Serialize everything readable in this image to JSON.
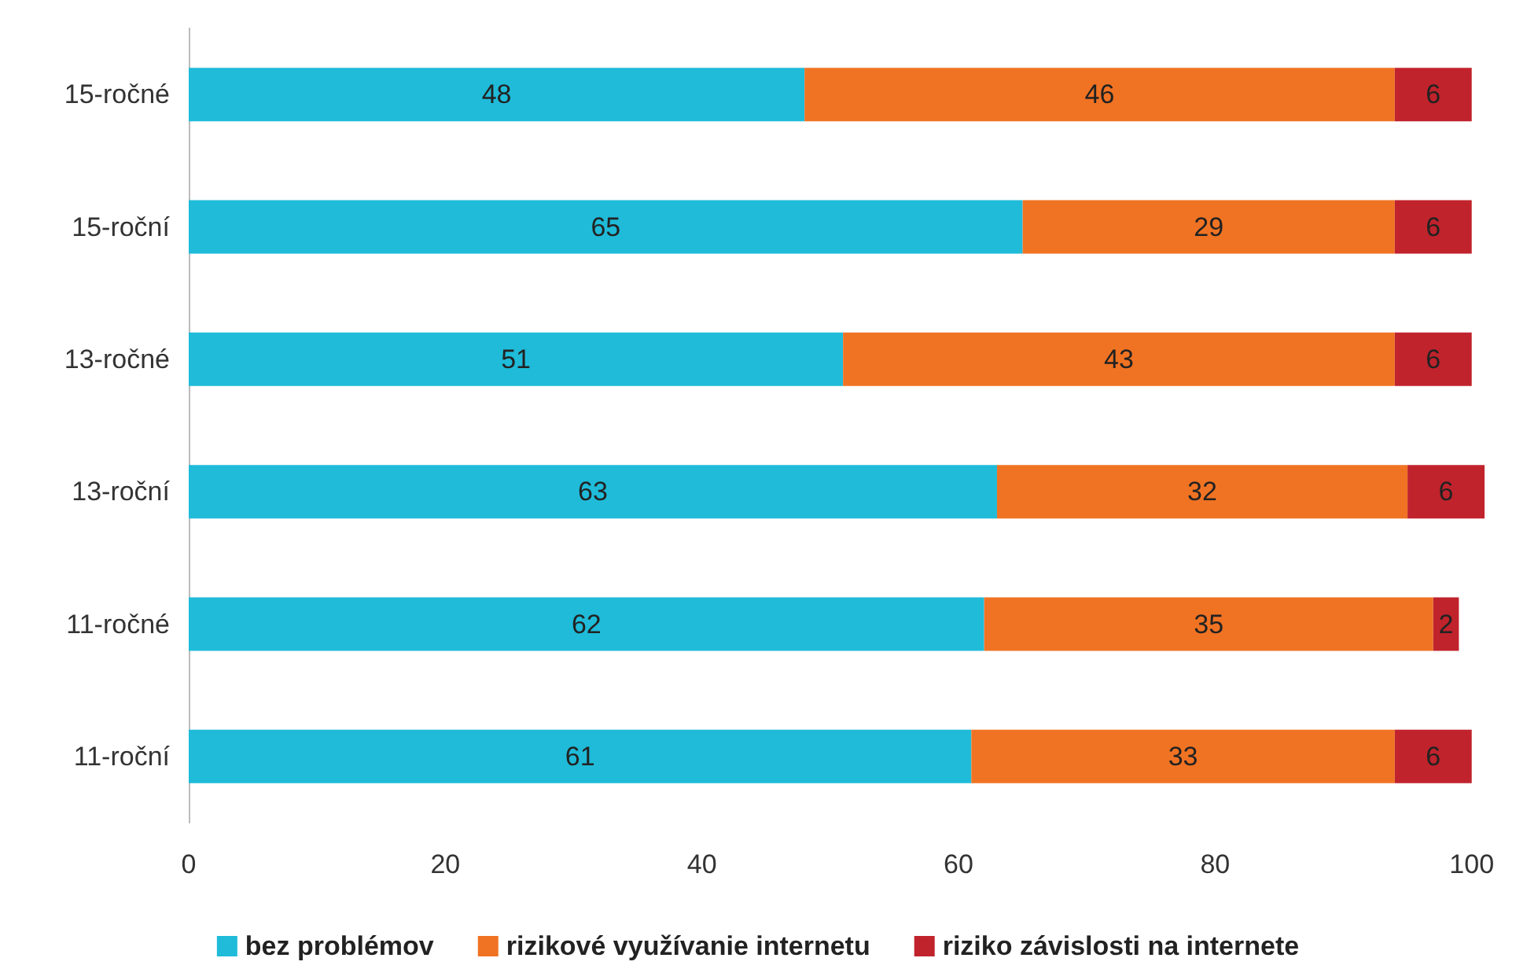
{
  "chart_data": {
    "type": "bar",
    "orientation": "horizontal",
    "stacked": true,
    "categories": [
      "15-ročné",
      "15-roční",
      "13-ročné",
      "13-roční",
      "11-ročné",
      "11-roční"
    ],
    "series": [
      {
        "name": "bez problémov",
        "color": "#1fbbd9",
        "values": [
          48,
          65,
          51,
          63,
          62,
          61
        ]
      },
      {
        "name": "rizikové využívanie internetu",
        "color": "#f07323",
        "values": [
          46,
          29,
          43,
          32,
          35,
          33
        ]
      },
      {
        "name": "riziko závislosti na internete",
        "color": "#c0232c",
        "values": [
          6,
          6,
          6,
          6,
          2,
          6
        ]
      }
    ],
    "xlim": [
      0,
      101
    ],
    "xticks": [
      0,
      20,
      40,
      60,
      80,
      100
    ],
    "grid": false,
    "legend": "bottom",
    "data_labels": true
  }
}
